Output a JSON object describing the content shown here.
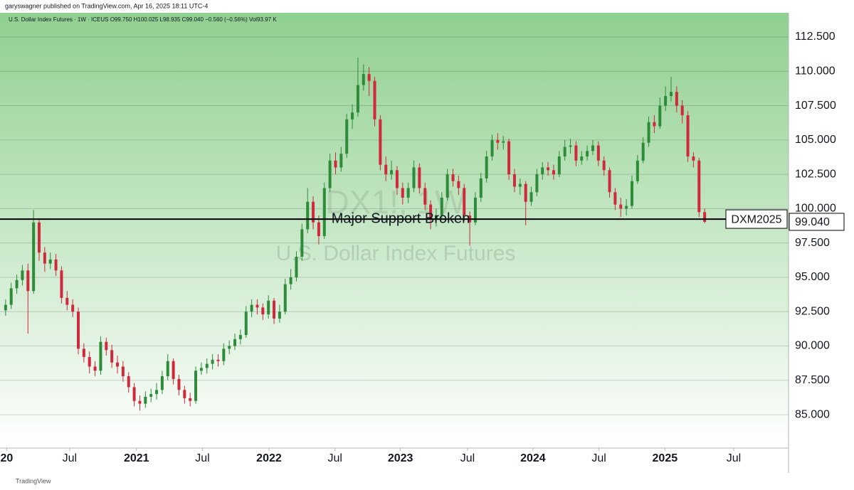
{
  "header": "garyswagner published on TradingView.com, Apr 16, 2025 18:11 UTC-4",
  "footer": "TradingView",
  "chart_data": {
    "type": "candlestick",
    "title": "U.S. Dollar Index Futures · 1W · ICEUS  O99.750  H100.025  L98.935  C99.040  −0.560 (−0.56%)  Vol93.97 K",
    "watermark": [
      "DX1!, 1W",
      "U.S. Dollar Index Futures"
    ],
    "up_color": "#2e8b3a",
    "down_color": "#d0283c",
    "open": [
      92.6,
      93.0,
      94.2,
      94.8,
      95.5,
      94.0,
      99.0,
      96.8,
      96.0,
      96.3,
      95.5,
      93.5,
      93.0,
      92.5,
      89.8,
      89.2,
      88.5,
      88.2,
      90.3,
      89.7,
      88.8,
      88.5,
      87.8,
      87.0,
      86.0,
      85.8,
      86.3,
      86.5,
      86.8,
      87.8,
      88.9,
      87.6,
      86.8,
      86.2,
      86.0,
      88.2,
      88.4,
      88.7,
      89.0,
      88.9,
      89.8,
      90.0,
      90.5,
      90.8,
      92.5,
      93.0,
      92.8,
      92.3,
      93.3,
      92.0,
      92.5,
      94.5,
      95.0,
      96.5,
      98.5,
      100.5,
      99.0,
      98.0,
      101.5,
      103.5,
      103.0,
      104.0,
      106.5,
      107.0,
      109.0,
      109.8,
      109.3,
      106.5,
      103.2,
      102.5,
      102.8,
      101.5,
      100.8,
      101.5,
      103.0,
      101.5,
      100.3,
      99.2,
      99.5,
      100.8,
      102.5,
      102.0,
      101.5,
      99.5,
      99.0,
      100.8,
      102.2,
      103.8,
      105.0,
      104.8,
      104.9,
      102.5,
      101.6,
      101.8,
      100.5,
      101.2,
      102.5,
      103.0,
      102.8,
      102.5,
      103.8,
      104.5,
      104.6,
      103.5,
      103.8,
      104.2,
      104.6,
      103.5,
      102.8,
      101.2,
      100.3,
      100.0,
      100.2,
      102.0,
      103.5,
      104.8,
      106.3,
      106.0,
      107.5,
      108.2,
      108.5,
      107.5,
      106.8,
      103.8,
      103.5,
      99.75
    ],
    "high": [
      93.4,
      94.6,
      95.2,
      95.9,
      96.0,
      99.9,
      99.3,
      97.2,
      96.8,
      96.7,
      95.8,
      94.0,
      93.4,
      92.8,
      90.2,
      89.6,
      88.9,
      90.7,
      90.6,
      90.1,
      89.3,
      88.9,
      88.1,
      87.3,
      86.4,
      86.7,
      86.9,
      87.3,
      88.2,
      89.4,
      89.1,
      87.9,
      87.1,
      86.6,
      88.5,
      88.8,
      89.1,
      89.4,
      89.4,
      90.2,
      90.4,
      90.9,
      91.2,
      92.9,
      93.4,
      93.4,
      93.1,
      93.7,
      93.5,
      93.0,
      94.9,
      95.6,
      96.9,
      98.9,
      101.5,
      100.9,
      99.5,
      101.9,
      104.0,
      104.1,
      104.5,
      106.9,
      107.6,
      111.0,
      110.5,
      110.3,
      109.6,
      106.8,
      103.8,
      103.5,
      103.1,
      101.9,
      101.9,
      103.5,
      103.3,
      101.9,
      100.6,
      100.0,
      101.2,
      102.9,
      102.9,
      102.4,
      101.8,
      99.8,
      101.2,
      102.6,
      104.2,
      105.4,
      105.5,
      105.3,
      105.1,
      102.9,
      102.2,
      102.0,
      101.6,
      102.9,
      103.4,
      103.4,
      103.2,
      104.2,
      105.0,
      105.1,
      104.9,
      104.2,
      104.6,
      105.0,
      104.9,
      103.8,
      103.0,
      101.5,
      100.8,
      100.7,
      102.4,
      103.9,
      105.2,
      106.7,
      106.8,
      108.1,
      108.9,
      109.6,
      108.9,
      107.9,
      107.1,
      104.1,
      103.7,
      100.025
    ],
    "low": [
      92.2,
      92.7,
      93.8,
      94.4,
      90.9,
      93.8,
      96.2,
      95.4,
      95.6,
      95.1,
      93.1,
      92.6,
      92.1,
      89.4,
      88.8,
      88.0,
      87.8,
      87.9,
      89.3,
      88.4,
      88.0,
      87.4,
      86.6,
      85.6,
      85.3,
      85.5,
      85.9,
      86.1,
      86.5,
      87.5,
      87.2,
      86.4,
      85.8,
      85.6,
      85.8,
      87.9,
      88.0,
      88.3,
      88.5,
      88.6,
      89.4,
      89.7,
      90.1,
      90.6,
      92.1,
      92.3,
      91.9,
      92.0,
      91.6,
      91.7,
      92.3,
      94.1,
      94.7,
      96.2,
      98.2,
      98.5,
      97.4,
      97.8,
      101.2,
      102.5,
      102.7,
      103.7,
      105.8,
      106.7,
      108.6,
      108.2,
      106.0,
      102.8,
      102.0,
      102.1,
      101.0,
      100.3,
      100.4,
      101.2,
      101.1,
      99.9,
      98.5,
      98.7,
      99.2,
      100.6,
      101.6,
      101.0,
      99.1,
      97.3,
      98.8,
      100.5,
      101.9,
      103.5,
      104.3,
      104.3,
      102.1,
      101.2,
      101.0,
      98.8,
      100.2,
      100.9,
      102.1,
      102.4,
      102.1,
      102.3,
      103.5,
      104.0,
      103.1,
      103.2,
      103.5,
      103.9,
      103.1,
      102.4,
      100.8,
      99.9,
      99.4,
      99.5,
      100.0,
      101.8,
      103.3,
      104.5,
      105.5,
      105.8,
      107.1,
      107.8,
      107.0,
      106.2,
      103.4,
      103.0,
      99.4,
      98.935
    ],
    "close": [
      93.0,
      94.2,
      94.8,
      95.5,
      94.0,
      99.0,
      96.8,
      96.0,
      96.3,
      95.5,
      93.5,
      93.0,
      92.5,
      89.8,
      89.2,
      88.5,
      88.2,
      90.3,
      89.7,
      88.8,
      88.5,
      87.8,
      87.0,
      86.0,
      85.8,
      86.3,
      86.5,
      86.8,
      87.8,
      88.9,
      87.6,
      86.8,
      86.2,
      86.0,
      88.2,
      88.4,
      88.7,
      89.0,
      88.9,
      89.8,
      90.0,
      90.5,
      90.8,
      92.5,
      93.0,
      92.8,
      92.3,
      93.3,
      92.0,
      92.5,
      94.5,
      95.0,
      96.5,
      98.5,
      100.5,
      99.0,
      98.0,
      101.5,
      103.5,
      103.0,
      104.0,
      106.5,
      107.0,
      109.0,
      109.8,
      109.3,
      106.5,
      103.2,
      102.5,
      102.8,
      101.5,
      100.8,
      101.5,
      103.0,
      101.5,
      100.3,
      99.2,
      99.5,
      100.8,
      102.5,
      102.0,
      101.5,
      99.5,
      99.0,
      100.8,
      102.2,
      103.8,
      105.0,
      104.8,
      104.9,
      102.5,
      101.6,
      101.8,
      100.5,
      101.2,
      102.5,
      103.0,
      102.8,
      102.5,
      103.8,
      104.5,
      104.6,
      103.5,
      103.8,
      104.2,
      104.6,
      103.5,
      102.8,
      101.2,
      100.3,
      100.0,
      100.2,
      102.0,
      103.5,
      104.8,
      106.3,
      106.0,
      107.5,
      108.2,
      108.5,
      107.5,
      106.8,
      103.8,
      103.5,
      99.75,
      99.04
    ],
    "xlim": [
      -1,
      140
    ],
    "xticks": [
      {
        "value": 0.2,
        "label": "20"
      },
      {
        "value": 11.45,
        "label": "Jul"
      },
      {
        "value": 23.4,
        "label": "2021"
      },
      {
        "value": 35.2,
        "label": "Jul"
      },
      {
        "value": 47.1,
        "label": "2022"
      },
      {
        "value": 58.9,
        "label": "Jul"
      },
      {
        "value": 70.6,
        "label": "2023"
      },
      {
        "value": 82.6,
        "label": "Jul"
      },
      {
        "value": 94.3,
        "label": "2024"
      },
      {
        "value": 106.1,
        "label": "Jul"
      },
      {
        "value": 117.9,
        "label": "2025"
      },
      {
        "value": 130.2,
        "label": "Jul"
      }
    ],
    "ylim": [
      82.57,
      114.26
    ],
    "yticks": [
      {
        "value": 85,
        "label": "85.000"
      },
      {
        "value": 87.5,
        "label": "87.500"
      },
      {
        "value": 90,
        "label": "90.000"
      },
      {
        "value": 92.5,
        "label": "92.500"
      },
      {
        "value": 95,
        "label": "95.000"
      },
      {
        "value": 97.5,
        "label": "97.500"
      },
      {
        "value": 100,
        "label": "100.000"
      },
      {
        "value": 102.5,
        "label": "102.500"
      },
      {
        "value": 105,
        "label": "105.000"
      },
      {
        "value": 107.5,
        "label": "107.500"
      },
      {
        "value": 110,
        "label": "110.000"
      },
      {
        "value": 112.5,
        "label": "112.500"
      }
    ],
    "grid": true,
    "support_line": {
      "value": 99.24,
      "label": "DXM2025",
      "annotation": "Major Support Broken"
    },
    "last_price": {
      "value": 99.04,
      "label": "99.040"
    }
  }
}
